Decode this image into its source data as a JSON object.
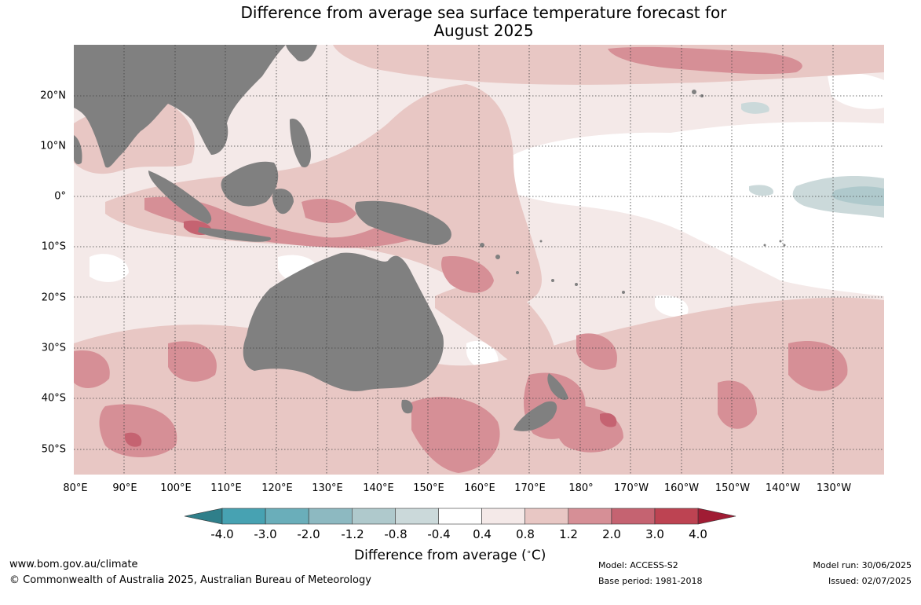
{
  "title_line1": "Difference from average sea surface temperature forecast for",
  "title_line2": "August 2025",
  "lat_labels": [
    "20°N",
    "10°N",
    "0°",
    "10°S",
    "20°S",
    "30°S",
    "40°S",
    "50°S"
  ],
  "lon_labels": [
    "80°E",
    "90°E",
    "100°E",
    "110°E",
    "120°E",
    "130°E",
    "140°E",
    "150°E",
    "160°E",
    "170°E",
    "180°",
    "170°W",
    "160°W",
    "150°W",
    "140°W",
    "130°W"
  ],
  "colorbar": {
    "ticks": [
      "-4.0",
      "-3.0",
      "-2.0",
      "-1.2",
      "-0.8",
      "-0.4",
      "0.4",
      "0.8",
      "1.2",
      "2.0",
      "3.0",
      "4.0"
    ],
    "colors": [
      "#2f7f8a",
      "#47a2b2",
      "#6aaeba",
      "#8db9c1",
      "#afc9cc",
      "#cbd9da",
      "#ffffff",
      "#f4e9e8",
      "#e8c7c4",
      "#d68f96",
      "#c56371",
      "#bd4352",
      "#a01c34"
    ],
    "label_text": "Difference from average (",
    "label_unit_sup": "∘",
    "label_unit": "C)"
  },
  "footer": {
    "website": "www.bom.gov.au/climate",
    "copyright": "© Commonwealth of Australia 2025, Australian Bureau of Meteorology",
    "model": "Model: ACCESS-S2",
    "base_period": "Base period: 1981-2018",
    "model_run": "Model run: 30/06/2025",
    "issued": "Issued: 02/07/2025"
  },
  "legend_colors": {
    "land": "#808080",
    "grid": "#404040"
  }
}
